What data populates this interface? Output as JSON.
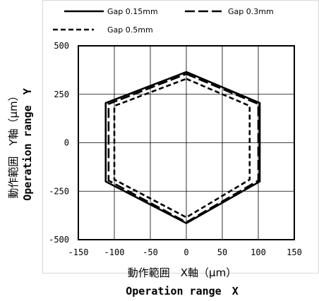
{
  "chart_data": {
    "type": "line",
    "title": "",
    "xlabel": "動作範囲　X軸（μm）",
    "xlabel_en": "Operation range　X",
    "ylabel": "動作範囲　Y軸（μm）",
    "ylabel_en": "Operation range　Y",
    "xlim": [
      -150,
      150
    ],
    "ylim": [
      -500,
      500
    ],
    "x_ticks": [
      "-150",
      "-100",
      "-50",
      "0",
      "50",
      "100",
      "150"
    ],
    "y_ticks": [
      "500",
      "250",
      "0",
      "-250",
      "-500"
    ],
    "grid": true,
    "legend_position": "top",
    "series": [
      {
        "name": "Gap 0.15mm",
        "dash": "solid",
        "x": [
          0,
          102,
          102,
          0,
          -112,
          -112,
          0
        ],
        "y": [
          365,
          205,
          -200,
          -415,
          -200,
          205,
          365
        ]
      },
      {
        "name": "Gap 0.3mm",
        "dash": "longdash",
        "x": [
          0,
          100,
          100,
          0,
          -108,
          -108,
          0
        ],
        "y": [
          355,
          200,
          -195,
          -410,
          -195,
          200,
          355
        ]
      },
      {
        "name": "Gap 0.5mm",
        "dash": "shortdash",
        "x": [
          0,
          88,
          88,
          0,
          -100,
          -100,
          0
        ],
        "y": [
          330,
          190,
          -190,
          -385,
          -190,
          190,
          330
        ]
      }
    ]
  }
}
